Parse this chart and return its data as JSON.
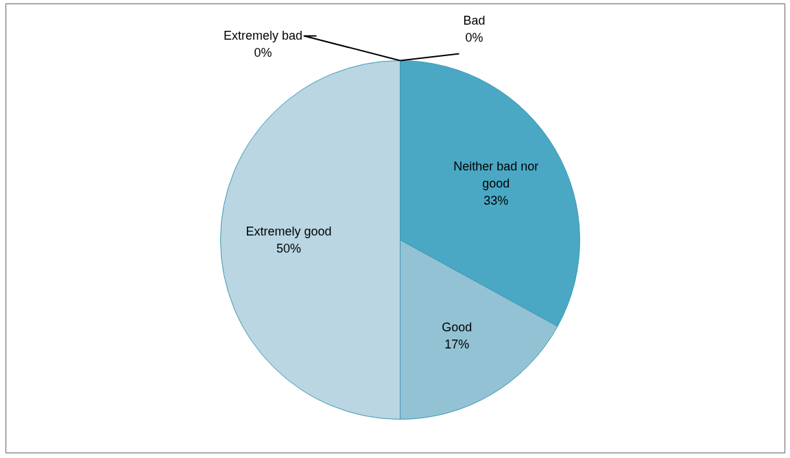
{
  "chart_data": {
    "type": "pie",
    "categories": [
      "Extremely bad",
      "Bad",
      "Neither bad nor good",
      "Good",
      "Extremely good"
    ],
    "values": [
      0,
      0,
      33,
      17,
      50
    ],
    "value_labels": [
      "0%",
      "0%",
      "33%",
      "17%",
      "50%"
    ],
    "colors": [
      "#235f73",
      "#2f8aa6",
      "#4aa8c4",
      "#92c2d3",
      "#b9d6e2"
    ]
  }
}
